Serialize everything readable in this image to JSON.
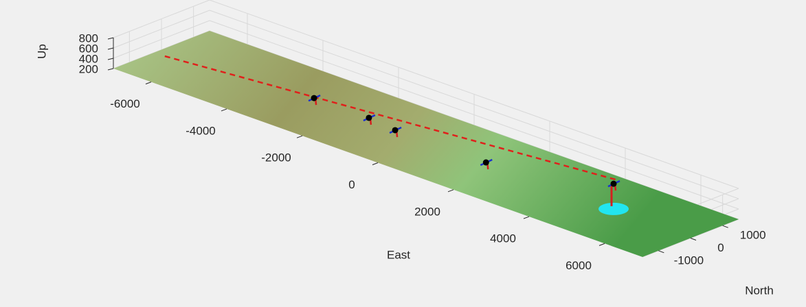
{
  "chart_data": {
    "type": "scatter3d",
    "xlabel": "East",
    "ylabel": "North",
    "zlabel": "Up",
    "xlim": [
      -7000,
      7000
    ],
    "ylim": [
      -1500,
      1500
    ],
    "zlim": [
      200,
      800
    ],
    "xticks": [
      -6000,
      -4000,
      -2000,
      0,
      2000,
      4000,
      6000
    ],
    "yticks": [
      -1000,
      0,
      1000
    ],
    "zticks": [
      200,
      400,
      600,
      800
    ],
    "grid": true,
    "path": {
      "color": "#e0201b",
      "x": [
        -6360,
        4250
      ],
      "y": [
        -650,
        900
      ],
      "z": [
        400,
        400
      ]
    },
    "series": [
      {
        "color": "#000000",
        "x": [
          -2810,
          -1350,
          -550,
          1850,
          4900
        ],
        "y": [
          -180,
          -190,
          -315,
          -310,
          75
        ],
        "z": [
          400,
          400,
          400,
          400,
          690
        ]
      }
    ],
    "station": {
      "color": "#22e5f0",
      "x": 4900,
      "y": 75,
      "z": 200
    }
  }
}
